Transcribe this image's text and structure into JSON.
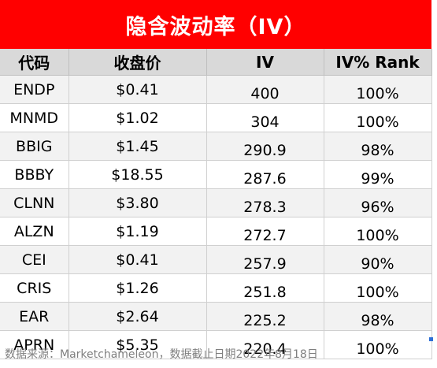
{
  "title": "隐含波动率（IV）",
  "columns": [
    "代码",
    "收盘价",
    "IV",
    "IV% Rank"
  ],
  "rows": [
    {
      "ticker": "ENDP",
      "price": "$0.41",
      "iv": "400",
      "rank": "100%"
    },
    {
      "ticker": "MNMD",
      "price": "$1.02",
      "iv": "304",
      "rank": "100%"
    },
    {
      "ticker": "BBIG",
      "price": "$1.45",
      "iv": "290.9",
      "rank": "98%"
    },
    {
      "ticker": "BBBY",
      "price": "$18.55",
      "iv": "287.6",
      "rank": "99%"
    },
    {
      "ticker": "CLNN",
      "price": "$3.80",
      "iv": "278.3",
      "rank": "96%"
    },
    {
      "ticker": "ALZN",
      "price": "$1.19",
      "iv": "272.7",
      "rank": "100%"
    },
    {
      "ticker": "CEI",
      "price": "$0.41",
      "iv": "257.9",
      "rank": "90%"
    },
    {
      "ticker": "CRIS",
      "price": "$1.26",
      "iv": "251.8",
      "rank": "100%"
    },
    {
      "ticker": "EAR",
      "price": "$2.64",
      "iv": "225.2",
      "rank": "98%"
    },
    {
      "ticker": "APRN",
      "price": "$5.35",
      "iv": "220.4",
      "rank": "100%"
    }
  ],
  "source": "数据来源：Marketchameleon，数据截止日期2022年8月18日",
  "colors": {
    "title_bg": "#ff0000",
    "header_bg": "#d9d9d9",
    "band_bg": "#f2f2f2"
  }
}
